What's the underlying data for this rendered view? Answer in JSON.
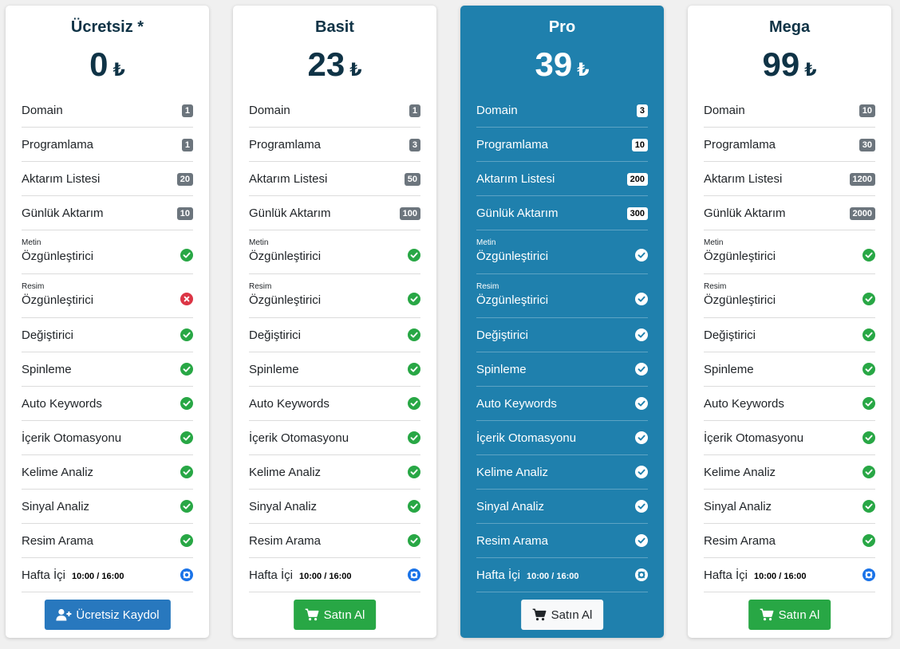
{
  "plans": [
    {
      "title": "Ücretsiz *",
      "price": "0",
      "currency": "₺",
      "featured": false,
      "button": {
        "label": "Ücretsiz Kaydol",
        "style": "blue",
        "icon": "user-plus-icon"
      },
      "features": [
        {
          "label": "Domain",
          "badge": "1"
        },
        {
          "label": "Programlama",
          "badge": "1"
        },
        {
          "label": "Aktarım Listesi",
          "badge": "20"
        },
        {
          "label": "Günlük Aktarım",
          "badge": "10"
        },
        {
          "sub": "Metin",
          "label": "Özgünleştirici",
          "icon": "check"
        },
        {
          "sub": "Resim",
          "label": "Özgünleştirici",
          "icon": "cross"
        },
        {
          "label": "Değiştirici",
          "icon": "check"
        },
        {
          "label": "Spinleme",
          "icon": "check"
        },
        {
          "label": "Auto Keywords",
          "icon": "check"
        },
        {
          "label": "İçerik Otomasyonu",
          "icon": "check"
        },
        {
          "label": "Kelime Analiz",
          "icon": "check"
        },
        {
          "label": "Sinyal Analiz",
          "icon": "check"
        },
        {
          "label": "Resim Arama",
          "icon": "check"
        },
        {
          "label": "Hafta İçi",
          "hours": "10:00 / 16:00",
          "icon": "lifering"
        }
      ]
    },
    {
      "title": "Basit",
      "price": "23",
      "currency": "₺",
      "featured": false,
      "button": {
        "label": "Satın Al",
        "style": "green",
        "icon": "cart-icon"
      },
      "features": [
        {
          "label": "Domain",
          "badge": "1"
        },
        {
          "label": "Programlama",
          "badge": "3"
        },
        {
          "label": "Aktarım Listesi",
          "badge": "50"
        },
        {
          "label": "Günlük Aktarım",
          "badge": "100"
        },
        {
          "sub": "Metin",
          "label": "Özgünleştirici",
          "icon": "check"
        },
        {
          "sub": "Resim",
          "label": "Özgünleştirici",
          "icon": "check"
        },
        {
          "label": "Değiştirici",
          "icon": "check"
        },
        {
          "label": "Spinleme",
          "icon": "check"
        },
        {
          "label": "Auto Keywords",
          "icon": "check"
        },
        {
          "label": "İçerik Otomasyonu",
          "icon": "check"
        },
        {
          "label": "Kelime Analiz",
          "icon": "check"
        },
        {
          "label": "Sinyal Analiz",
          "icon": "check"
        },
        {
          "label": "Resim Arama",
          "icon": "check"
        },
        {
          "label": "Hafta İçi",
          "hours": "10:00 / 16:00",
          "icon": "lifering"
        }
      ]
    },
    {
      "title": "Pro",
      "price": "39",
      "currency": "₺",
      "featured": true,
      "button": {
        "label": "Satın Al",
        "style": "white",
        "icon": "cart-icon"
      },
      "features": [
        {
          "label": "Domain",
          "badge": "3"
        },
        {
          "label": "Programlama",
          "badge": "10"
        },
        {
          "label": "Aktarım Listesi",
          "badge": "200"
        },
        {
          "label": "Günlük Aktarım",
          "badge": "300"
        },
        {
          "sub": "Metin",
          "label": "Özgünleştirici",
          "icon": "check"
        },
        {
          "sub": "Resim",
          "label": "Özgünleştirici",
          "icon": "check"
        },
        {
          "label": "Değiştirici",
          "icon": "check"
        },
        {
          "label": "Spinleme",
          "icon": "check"
        },
        {
          "label": "Auto Keywords",
          "icon": "check"
        },
        {
          "label": "İçerik Otomasyonu",
          "icon": "check"
        },
        {
          "label": "Kelime Analiz",
          "icon": "check"
        },
        {
          "label": "Sinyal Analiz",
          "icon": "check"
        },
        {
          "label": "Resim Arama",
          "icon": "check"
        },
        {
          "label": "Hafta İçi",
          "hours": "10:00 / 16:00",
          "icon": "lifering"
        }
      ]
    },
    {
      "title": "Mega",
      "price": "99",
      "currency": "₺",
      "featured": false,
      "button": {
        "label": "Satın Al",
        "style": "green",
        "icon": "cart-icon"
      },
      "features": [
        {
          "label": "Domain",
          "badge": "10"
        },
        {
          "label": "Programlama",
          "badge": "30"
        },
        {
          "label": "Aktarım Listesi",
          "badge": "1200"
        },
        {
          "label": "Günlük Aktarım",
          "badge": "2000"
        },
        {
          "sub": "Metin",
          "label": "Özgünleştirici",
          "icon": "check"
        },
        {
          "sub": "Resim",
          "label": "Özgünleştirici",
          "icon": "check"
        },
        {
          "label": "Değiştirici",
          "icon": "check"
        },
        {
          "label": "Spinleme",
          "icon": "check"
        },
        {
          "label": "Auto Keywords",
          "icon": "check"
        },
        {
          "label": "İçerik Otomasyonu",
          "icon": "check"
        },
        {
          "label": "Kelime Analiz",
          "icon": "check"
        },
        {
          "label": "Sinyal Analiz",
          "icon": "check"
        },
        {
          "label": "Resim Arama",
          "icon": "check"
        },
        {
          "label": "Hafta İçi",
          "hours": "10:00 / 16:00",
          "icon": "lifering"
        }
      ]
    }
  ],
  "colors": {
    "featured_bg": "#1f80ad",
    "title_dark": "#0f3346",
    "check_green": "#28a745",
    "cross_red": "#dc3545",
    "support_blue": "#1a73e8",
    "badge_gray": "#6c757d",
    "button_blue": "#2878be"
  }
}
